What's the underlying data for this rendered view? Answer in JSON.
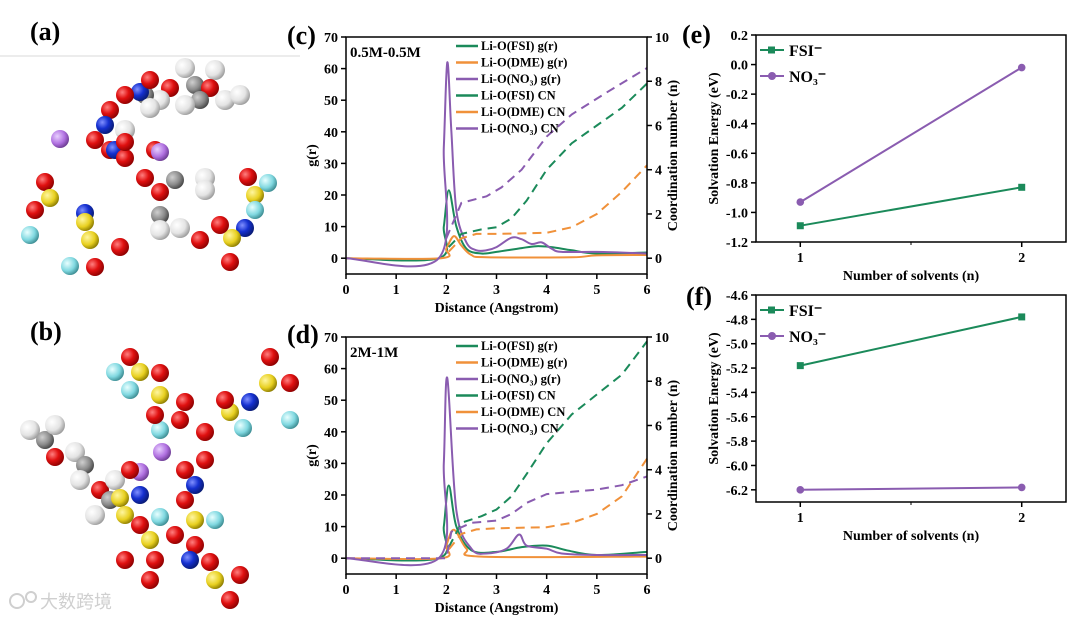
{
  "panels": {
    "a": "(a)",
    "b": "(b)",
    "c": "(c)",
    "d": "(d)",
    "e": "(e)",
    "f": "(f)"
  },
  "watermark": "大数跨境",
  "colors": {
    "fsi": "#1b8a5a",
    "dme": "#f0913a",
    "no3": "#8a5cb0"
  },
  "chart_data": [
    {
      "id": "c",
      "type": "line",
      "condition": "0.5M-0.5M",
      "xlabel": "Distance (Angstrom)",
      "ylabel": "g(r)",
      "y2label": "Coordination number (n)",
      "xlim": [
        0,
        6
      ],
      "ylim": [
        -5,
        70
      ],
      "y2lim": [
        -0.714,
        10
      ],
      "xticks": [
        "0",
        "1",
        "2",
        "3",
        "4",
        "5",
        "6"
      ],
      "yticks": [
        "0",
        "10",
        "20",
        "30",
        "40",
        "50",
        "60",
        "70"
      ],
      "y2ticks": [
        "0",
        "2",
        "4",
        "6",
        "8",
        "10"
      ],
      "legend": [
        "Li-O(FSI) g(r)",
        "Li-O(DME) g(r)",
        "Li-O(NO₃) g(r)",
        "Li-O(FSI) CN",
        "Li-O(DME) CN",
        "Li-O(NO₃) CN"
      ],
      "series": [
        {
          "name": "Li-O(FSI) g(r)",
          "color": "fsi",
          "axis": "left",
          "dash": false,
          "x": [
            0,
            1.85,
            1.95,
            2.05,
            2.2,
            2.4,
            2.7,
            3.0,
            3.5,
            3.8,
            4.1,
            4.5,
            5.0,
            6.0
          ],
          "y": [
            0,
            0,
            10,
            21.5,
            10,
            3,
            1.5,
            2,
            3.2,
            3.8,
            3.5,
            2.5,
            1.5,
            1.8
          ]
        },
        {
          "name": "Li-O(DME) g(r)",
          "color": "dme",
          "axis": "left",
          "dash": false,
          "x": [
            0,
            1.9,
            2.0,
            2.15,
            2.3,
            2.5,
            2.8,
            4.5,
            5.0,
            6.0
          ],
          "y": [
            0,
            0,
            3,
            7,
            4,
            1,
            0.3,
            0.3,
            0.9,
            1
          ]
        },
        {
          "name": "Li-O(NO₃) g(r)",
          "color": "no3",
          "axis": "left",
          "dash": false,
          "x": [
            0,
            1.85,
            1.95,
            2.02,
            2.1,
            2.2,
            2.4,
            2.6,
            2.8,
            3.0,
            3.3,
            3.5,
            3.7,
            3.9,
            4.1,
            4.3,
            5.0,
            6.0
          ],
          "y": [
            0,
            0,
            35,
            62,
            40,
            15,
            5,
            2.5,
            2.5,
            3.5,
            6.5,
            6,
            4.5,
            5,
            3,
            2,
            2,
            1.5
          ]
        },
        {
          "name": "Li-O(FSI) CN",
          "color": "fsi",
          "axis": "right",
          "dash": true,
          "x": [
            2.05,
            2.3,
            2.7,
            3.0,
            3.3,
            3.6,
            4.0,
            4.5,
            5.0,
            5.5,
            6.0
          ],
          "y": [
            0.5,
            1.1,
            1.3,
            1.4,
            1.8,
            2.6,
            4.0,
            5.2,
            6.0,
            6.8,
            7.9
          ]
        },
        {
          "name": "Li-O(DME) CN",
          "color": "dme",
          "axis": "right",
          "dash": true,
          "x": [
            2.05,
            2.3,
            2.6,
            3.0,
            4.0,
            4.5,
            5.0,
            5.5,
            6.0
          ],
          "y": [
            0.3,
            0.9,
            1.1,
            1.1,
            1.15,
            1.4,
            2.0,
            3.0,
            4.2
          ]
        },
        {
          "name": "Li-O(NO₃) CN",
          "color": "no3",
          "axis": "right",
          "dash": true,
          "x": [
            2.0,
            2.3,
            2.8,
            3.1,
            3.5,
            4.0,
            4.5,
            5.2,
            6.0
          ],
          "y": [
            0.9,
            2.5,
            2.8,
            3.2,
            4.0,
            5.5,
            6.5,
            7.5,
            8.6
          ]
        }
      ]
    },
    {
      "id": "d",
      "type": "line",
      "condition": "2M-1M",
      "xlabel": "Distance (Angstrom)",
      "ylabel": "g(r)",
      "y2label": "Coordination number (n)",
      "xlim": [
        0,
        6
      ],
      "ylim": [
        -5,
        70
      ],
      "y2lim": [
        -0.714,
        10
      ],
      "xticks": [
        "0",
        "1",
        "2",
        "3",
        "4",
        "5",
        "6"
      ],
      "yticks": [
        "0",
        "10",
        "20",
        "30",
        "40",
        "50",
        "60",
        "70"
      ],
      "y2ticks": [
        "0",
        "2",
        "4",
        "6",
        "8",
        "10"
      ],
      "legend": [
        "Li-O(FSI) g(r)",
        "Li-O(DME) g(r)",
        "Li-O(NO₃) g(r)",
        "Li-O(FSI) CN",
        "Li-O(DME) CN",
        "Li-O(NO₃) CN"
      ],
      "series": [
        {
          "name": "Li-O(FSI) g(r)",
          "color": "fsi",
          "axis": "left",
          "dash": false,
          "x": [
            0,
            1.85,
            1.95,
            2.05,
            2.2,
            2.5,
            3.0,
            3.5,
            4.0,
            4.4,
            5.0,
            6.0
          ],
          "y": [
            0,
            0,
            10,
            23,
            10,
            2.5,
            2,
            3.5,
            4,
            2.5,
            1,
            2
          ]
        },
        {
          "name": "Li-O(DME) g(r)",
          "color": "dme",
          "axis": "left",
          "dash": false,
          "x": [
            0,
            1.9,
            2.0,
            2.15,
            2.4,
            2.7,
            6.0
          ],
          "y": [
            0,
            0,
            4,
            9,
            3,
            0.5,
            0.5
          ]
        },
        {
          "name": "Li-O(NO₃) g(r)",
          "color": "no3",
          "axis": "left",
          "dash": false,
          "x": [
            0,
            1.85,
            1.95,
            2.02,
            2.2,
            2.5,
            2.8,
            3.2,
            3.45,
            3.6,
            4.0,
            4.3,
            5.0,
            6.0
          ],
          "y": [
            0,
            0,
            30,
            57,
            15,
            3,
            1.5,
            3,
            7.5,
            4,
            3,
            1.5,
            1,
            1
          ]
        },
        {
          "name": "Li-O(FSI) CN",
          "color": "fsi",
          "axis": "right",
          "dash": true,
          "x": [
            2.05,
            2.3,
            2.7,
            3.0,
            3.3,
            3.6,
            4.0,
            4.5,
            5.0,
            5.5,
            6.0
          ],
          "y": [
            0.5,
            1.6,
            1.9,
            2.2,
            2.8,
            3.8,
            5.2,
            6.5,
            7.4,
            8.3,
            9.8
          ]
        },
        {
          "name": "Li-O(DME) CN",
          "color": "dme",
          "axis": "right",
          "dash": true,
          "x": [
            2.05,
            2.3,
            2.6,
            3.0,
            4.0,
            4.5,
            5.0,
            5.5,
            6.0
          ],
          "y": [
            0.4,
            1.1,
            1.3,
            1.35,
            1.4,
            1.6,
            2.0,
            2.8,
            4.5
          ]
        },
        {
          "name": "Li-O(NO₃) CN",
          "color": "no3",
          "axis": "right",
          "dash": true,
          "x": [
            0,
            2.0,
            2.1,
            2.5,
            3.0,
            3.3,
            3.6,
            4.0,
            4.5,
            5.0,
            5.5,
            6.0
          ],
          "y": [
            0,
            0,
            1.2,
            1.6,
            1.7,
            2.0,
            2.5,
            2.9,
            3.0,
            3.1,
            3.3,
            3.7
          ]
        }
      ]
    },
    {
      "id": "e",
      "type": "line",
      "xlabel": "Number of solvents (n)",
      "ylabel": "Solvation Energy (eV)",
      "xlim": [
        0.8,
        2.2
      ],
      "ylim": [
        -1.2,
        0.2
      ],
      "xticks": [
        "1",
        "2"
      ],
      "yticks": [
        "-1.2",
        "-1.0",
        "-0.8",
        "-0.6",
        "-0.4",
        "-0.2",
        "0.0",
        "0.2"
      ],
      "legend": [
        "FSI⁻",
        "NO₃⁻"
      ],
      "series": [
        {
          "name": "FSI⁻",
          "color": "fsi",
          "marker": "square",
          "x": [
            1,
            2
          ],
          "y": [
            -1.09,
            -0.83
          ]
        },
        {
          "name": "NO₃⁻",
          "color": "no3",
          "marker": "circle",
          "x": [
            1,
            2
          ],
          "y": [
            -0.93,
            -0.02
          ]
        }
      ]
    },
    {
      "id": "f",
      "type": "line",
      "xlabel": "Number of solvents (n)",
      "ylabel": "Solvation Energy (eV)",
      "xlim": [
        0.8,
        2.2
      ],
      "ylim": [
        -6.3,
        -4.6
      ],
      "xticks": [
        "1",
        "2"
      ],
      "yticks": [
        "-6.2",
        "-6.0",
        "-5.8",
        "-5.6",
        "-5.4",
        "-5.2",
        "-5.0",
        "-4.8",
        "-4.6"
      ],
      "legend": [
        "FSI⁻",
        "NO₃⁻"
      ],
      "series": [
        {
          "name": "FSI⁻",
          "color": "fsi",
          "marker": "square",
          "x": [
            1,
            2
          ],
          "y": [
            -5.18,
            -4.78
          ]
        },
        {
          "name": "NO₃⁻",
          "color": "no3",
          "marker": "circle",
          "x": [
            1,
            2
          ],
          "y": [
            -6.2,
            -6.18
          ]
        }
      ]
    }
  ]
}
